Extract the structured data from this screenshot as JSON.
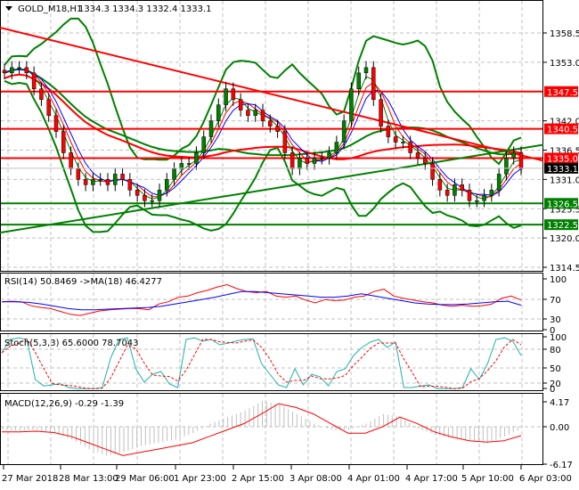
{
  "header": {
    "symbol": "GOLD_M18,H1",
    "ohlc": "1334.3 1334.3 1332.4 1333.1"
  },
  "colors": {
    "bull": "#008000",
    "bear": "#ff0000",
    "resistance": "#ff0000",
    "support": "#008000",
    "bollinger": "#008000",
    "ma_fast": "#0000ff",
    "ma_mid": "#ff0000",
    "ma_slow": "#008000",
    "rsi": "#ff0000",
    "rsi_ma": "#0000ff",
    "stoch_main": "#20b2aa",
    "stoch_signal": "#ff0000",
    "macd_hist": "#c0c0c0",
    "macd_signal": "#ff0000",
    "grid": "#c0c0c0",
    "price_tag": "#000000"
  },
  "chart_data": [
    {
      "type": "candlestick",
      "title": "GOLD_M18,H1",
      "ylim": [
        1314.5,
        1362
      ],
      "y_ticks": [
        1358.5,
        1353.0,
        1347.5,
        1342.0,
        1336.5,
        1331.0,
        1325.5,
        1320.0,
        1314.5
      ],
      "current_price": 1333.1,
      "horizontal_levels": [
        {
          "value": 1347.5,
          "color": "red",
          "label": "1347.5"
        },
        {
          "value": 1340.5,
          "color": "red",
          "label": "1340.5"
        },
        {
          "value": 1335.0,
          "color": "red",
          "label": "1335.0"
        },
        {
          "value": 1326.5,
          "color": "green",
          "label": "1326.5"
        },
        {
          "value": 1322.5,
          "color": "green",
          "label": "1322.5"
        }
      ],
      "trendlines": [
        {
          "color": "red",
          "from": [
            0,
            1359.5
          ],
          "to": [
            610,
            1334.5
          ]
        },
        {
          "color": "green",
          "from": [
            0,
            1321.0
          ],
          "to": [
            610,
            1337.5
          ]
        }
      ],
      "close_series_approx": [
        1351,
        1352,
        1352,
        1351,
        1348,
        1346,
        1343,
        1340,
        1336,
        1333,
        1331,
        1330,
        1331,
        1331,
        1330,
        1332,
        1331,
        1329,
        1328,
        1327,
        1327,
        1329,
        1331,
        1333,
        1334,
        1334,
        1336,
        1339,
        1342,
        1345,
        1348,
        1346,
        1344,
        1343,
        1344,
        1342,
        1341,
        1340,
        1336,
        1333,
        1335,
        1334,
        1335,
        1335,
        1336,
        1338,
        1342,
        1348,
        1351,
        1352,
        1346,
        1341,
        1339,
        1338,
        1338,
        1336,
        1335,
        1334,
        1331,
        1329,
        1328,
        1330,
        1329,
        1327,
        1327,
        1328,
        1329,
        1332,
        1335,
        1336,
        1333
      ],
      "indicators": [
        "Bollinger Bands",
        "MA fast (blue)",
        "MA mid (red)",
        "MA slow (green)"
      ]
    },
    {
      "type": "line",
      "title": "RSI(14) 50.8469 ->MA(18) 46.4277",
      "ylim": [
        0,
        100
      ],
      "y_ticks": [
        100,
        70,
        30,
        0
      ],
      "series": [
        {
          "name": "RSI(14)",
          "last": 50.8469,
          "values": [
            52,
            53,
            52,
            45,
            42,
            40,
            35,
            30,
            28,
            32,
            36,
            38,
            39,
            40,
            40,
            38,
            48,
            52,
            60,
            62,
            68,
            72,
            78,
            82,
            75,
            70,
            68,
            70,
            62,
            60,
            62,
            55,
            50,
            56,
            54,
            55,
            60,
            62,
            70,
            74,
            62,
            58,
            55,
            52,
            50,
            46,
            44,
            46,
            44,
            45,
            48,
            58,
            62,
            55
          ]
        },
        {
          "name": "MA(18)",
          "last": 46.4277,
          "values": [
            52,
            52,
            51,
            48,
            44,
            40,
            38,
            38,
            39,
            40,
            41,
            42,
            44,
            48,
            52,
            56,
            60,
            65,
            70,
            70,
            68,
            66,
            64,
            62,
            60,
            60,
            62,
            66,
            62,
            58,
            54,
            50,
            48,
            47,
            47,
            48,
            50,
            52,
            53,
            46
          ]
        }
      ]
    },
    {
      "type": "line",
      "title": "Stoch(5,3,3) 65.6000 78.7043",
      "ylim": [
        0,
        100
      ],
      "y_ticks": [
        100,
        80,
        50,
        20,
        0
      ],
      "series": [
        {
          "name": "%K",
          "last": 65.6
        },
        {
          "name": "%D",
          "last": 78.7043
        }
      ]
    },
    {
      "type": "bar+line",
      "title": "MACD(12,26,9) -0.29 -1.39",
      "ylim": [
        -6.17,
        4.17
      ],
      "y_ticks": [
        4.17,
        0.0,
        -6.17
      ],
      "series": [
        {
          "name": "MACD",
          "last": -0.29
        },
        {
          "name": "Signal",
          "last": -1.39
        }
      ]
    }
  ],
  "time_axis": [
    "27 Mar 2018",
    "28 Mar 13:00",
    "29 Mar 06:00",
    "1 Apr 23:00",
    "2 Apr 15:00",
    "3 Apr 08:00",
    "4 Apr 01:00",
    "4 Apr 17:00",
    "5 Apr 10:00",
    "6 Apr 03:00"
  ],
  "panels": {
    "rsi_label": "RSI(14) 50.8469  ->MA(18) 46.4277",
    "stoch_label": "Stoch(5,3,3) 65.6000 78.7043",
    "macd_label": "MACD(12,26,9) -0.29 -1.39"
  },
  "price_axis": {
    "labels": [
      "1358.5",
      "1353.0",
      "1342.0",
      "1336.5",
      "1331.0",
      "1325.5",
      "1320.0",
      "1314.5"
    ],
    "tags": {
      "r1": "1347.5",
      "r2": "1340.5",
      "r3": "1335.0",
      "cur": "1333.1",
      "s1": "1326.5",
      "s2": "1322.5"
    }
  },
  "rsi_axis": [
    "100",
    "70",
    "30",
    "0"
  ],
  "stoch_axis": [
    "100",
    "80",
    "50",
    "20",
    "0"
  ],
  "macd_axis": [
    "4.17",
    "0.00",
    "-6.17"
  ]
}
